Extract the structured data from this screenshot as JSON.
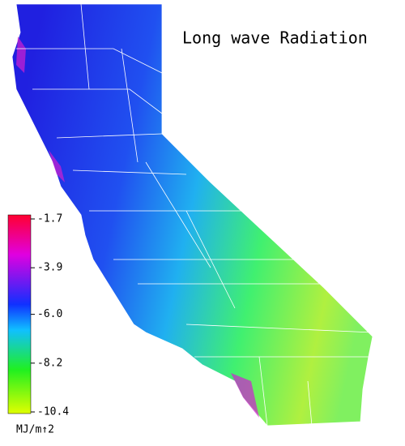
{
  "title": "Long wave Radiation",
  "colorbar": {
    "lim": [
      -10.4,
      -1.7
    ],
    "ticks": [
      -1.7,
      -3.9,
      {
        "value": -6,
        "label": "-6.0"
      },
      -8.2,
      -10.4
    ],
    "unit": "MJ/m↑2"
  }
}
